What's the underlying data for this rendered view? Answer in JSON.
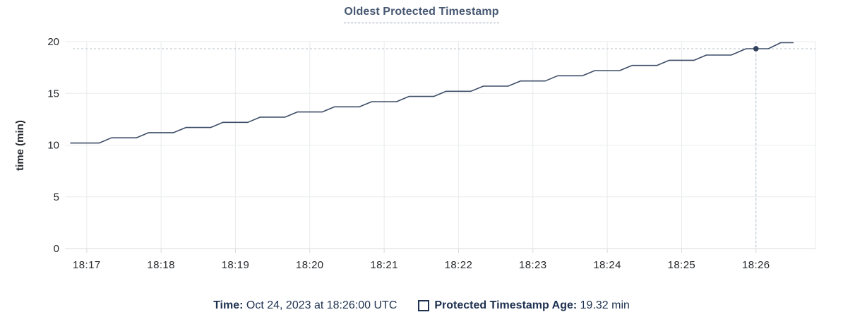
{
  "title": "Oldest Protected Timestamp",
  "tooltip": {
    "time_label": "Time:",
    "time_value": "Oct 24, 2023 at 18:26:00 UTC",
    "series_label": "Protected Timestamp Age:",
    "series_value": "19.32 min"
  },
  "colors": {
    "title": "#475872",
    "legend_text": "#1e3150",
    "tick_text": "#24272b",
    "line": "#3e4e68",
    "dot": "#32415c",
    "crosshair": "#b4c1c9",
    "grid": "#e9ebed",
    "axis": "#d7d9dc"
  },
  "chart_data": {
    "type": "line",
    "title": "Oldest Protected Timestamp",
    "xlabel": "",
    "ylabel": "time (min)",
    "ylim": [
      0,
      20
    ],
    "y_ticks": [
      0,
      5,
      10,
      15,
      20
    ],
    "x_ticks": [
      "18:17",
      "18:18",
      "18:19",
      "18:20",
      "18:21",
      "18:22",
      "18:23",
      "18:24",
      "18:25",
      "18:26"
    ],
    "x_range": [
      "18:16:47",
      "18:26:48"
    ],
    "grid": true,
    "legend_position": "bottom",
    "series": [
      {
        "name": "Protected Timestamp Age",
        "unit": "min",
        "points": [
          {
            "t": "18:16:47",
            "v": 10.2
          },
          {
            "t": "18:17:10",
            "v": 10.2
          },
          {
            "t": "18:17:20",
            "v": 10.7
          },
          {
            "t": "18:17:40",
            "v": 10.7
          },
          {
            "t": "18:17:50",
            "v": 11.2
          },
          {
            "t": "18:18:10",
            "v": 11.2
          },
          {
            "t": "18:18:20",
            "v": 11.7
          },
          {
            "t": "18:18:40",
            "v": 11.7
          },
          {
            "t": "18:18:50",
            "v": 12.2
          },
          {
            "t": "18:19:10",
            "v": 12.2
          },
          {
            "t": "18:19:20",
            "v": 12.7
          },
          {
            "t": "18:19:40",
            "v": 12.7
          },
          {
            "t": "18:19:50",
            "v": 13.2
          },
          {
            "t": "18:20:10",
            "v": 13.2
          },
          {
            "t": "18:20:20",
            "v": 13.7
          },
          {
            "t": "18:20:40",
            "v": 13.7
          },
          {
            "t": "18:20:50",
            "v": 14.2
          },
          {
            "t": "18:21:10",
            "v": 14.2
          },
          {
            "t": "18:21:20",
            "v": 14.7
          },
          {
            "t": "18:21:40",
            "v": 14.7
          },
          {
            "t": "18:21:50",
            "v": 15.2
          },
          {
            "t": "18:22:10",
            "v": 15.2
          },
          {
            "t": "18:22:20",
            "v": 15.7
          },
          {
            "t": "18:22:40",
            "v": 15.7
          },
          {
            "t": "18:22:50",
            "v": 16.2
          },
          {
            "t": "18:23:10",
            "v": 16.2
          },
          {
            "t": "18:23:20",
            "v": 16.7
          },
          {
            "t": "18:23:40",
            "v": 16.7
          },
          {
            "t": "18:23:50",
            "v": 17.2
          },
          {
            "t": "18:24:10",
            "v": 17.2
          },
          {
            "t": "18:24:20",
            "v": 17.7
          },
          {
            "t": "18:24:40",
            "v": 17.7
          },
          {
            "t": "18:24:50",
            "v": 18.2
          },
          {
            "t": "18:25:10",
            "v": 18.2
          },
          {
            "t": "18:25:20",
            "v": 18.7
          },
          {
            "t": "18:25:40",
            "v": 18.7
          },
          {
            "t": "18:25:52",
            "v": 19.32
          },
          {
            "t": "18:26:10",
            "v": 19.32
          },
          {
            "t": "18:26:20",
            "v": 19.9
          },
          {
            "t": "18:26:30",
            "v": 19.9
          }
        ]
      }
    ],
    "highlight": {
      "t": "18:26:00",
      "v": 19.32
    }
  }
}
